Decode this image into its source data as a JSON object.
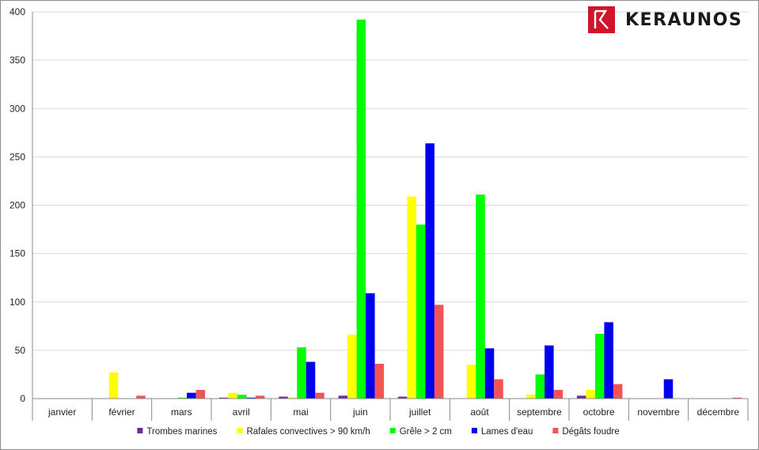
{
  "logo": {
    "text": "KERAUNOS",
    "color": "#d0142a"
  },
  "chart_data": {
    "type": "bar",
    "categories": [
      "janvier",
      "février",
      "mars",
      "avril",
      "mai",
      "juin",
      "juillet",
      "août",
      "septembre",
      "octobre",
      "novembre",
      "décembre"
    ],
    "ylim": [
      0,
      400
    ],
    "yticks": [
      0,
      50,
      100,
      150,
      200,
      250,
      300,
      350,
      400
    ],
    "grid": true,
    "legend_position": "bottom",
    "series": [
      {
        "name": "Trombes marines",
        "color": "#6a2aa0",
        "values": [
          0,
          0,
          0,
          1,
          2,
          3,
          2,
          0,
          0,
          3,
          0,
          0
        ]
      },
      {
        "name": "Rafales convectives > 90 km/h",
        "color": "#ffff00",
        "values": [
          0,
          27,
          0,
          6,
          1,
          66,
          209,
          35,
          4,
          9,
          0,
          0
        ]
      },
      {
        "name": "Grêle > 2 cm",
        "color": "#00ff00",
        "values": [
          0,
          0,
          1,
          4,
          53,
          392,
          180,
          211,
          25,
          67,
          0,
          0
        ]
      },
      {
        "name": "Lames d'eau",
        "color": "#0000ee",
        "values": [
          0,
          0,
          6,
          1,
          38,
          109,
          264,
          52,
          55,
          79,
          20,
          0
        ]
      },
      {
        "name": "Dégâts foudre",
        "color": "#f05454",
        "values": [
          0,
          3,
          9,
          3,
          6,
          36,
          97,
          20,
          9,
          15,
          0,
          1
        ]
      }
    ]
  }
}
